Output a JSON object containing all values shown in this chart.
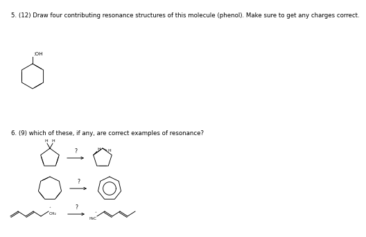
{
  "bg_color": "#ffffff",
  "lc": "#000000",
  "q5_text": "5. (12) Draw four contributing resonance structures of this molecule (phenol). Make sure to get any charges correct.",
  "q6_text": "6. (9) which of these, if any, are correct examples of resonance?",
  "fontsize_q": 6.2,
  "lw": 0.65,
  "oh_label": ":OH",
  "q_label": "?"
}
